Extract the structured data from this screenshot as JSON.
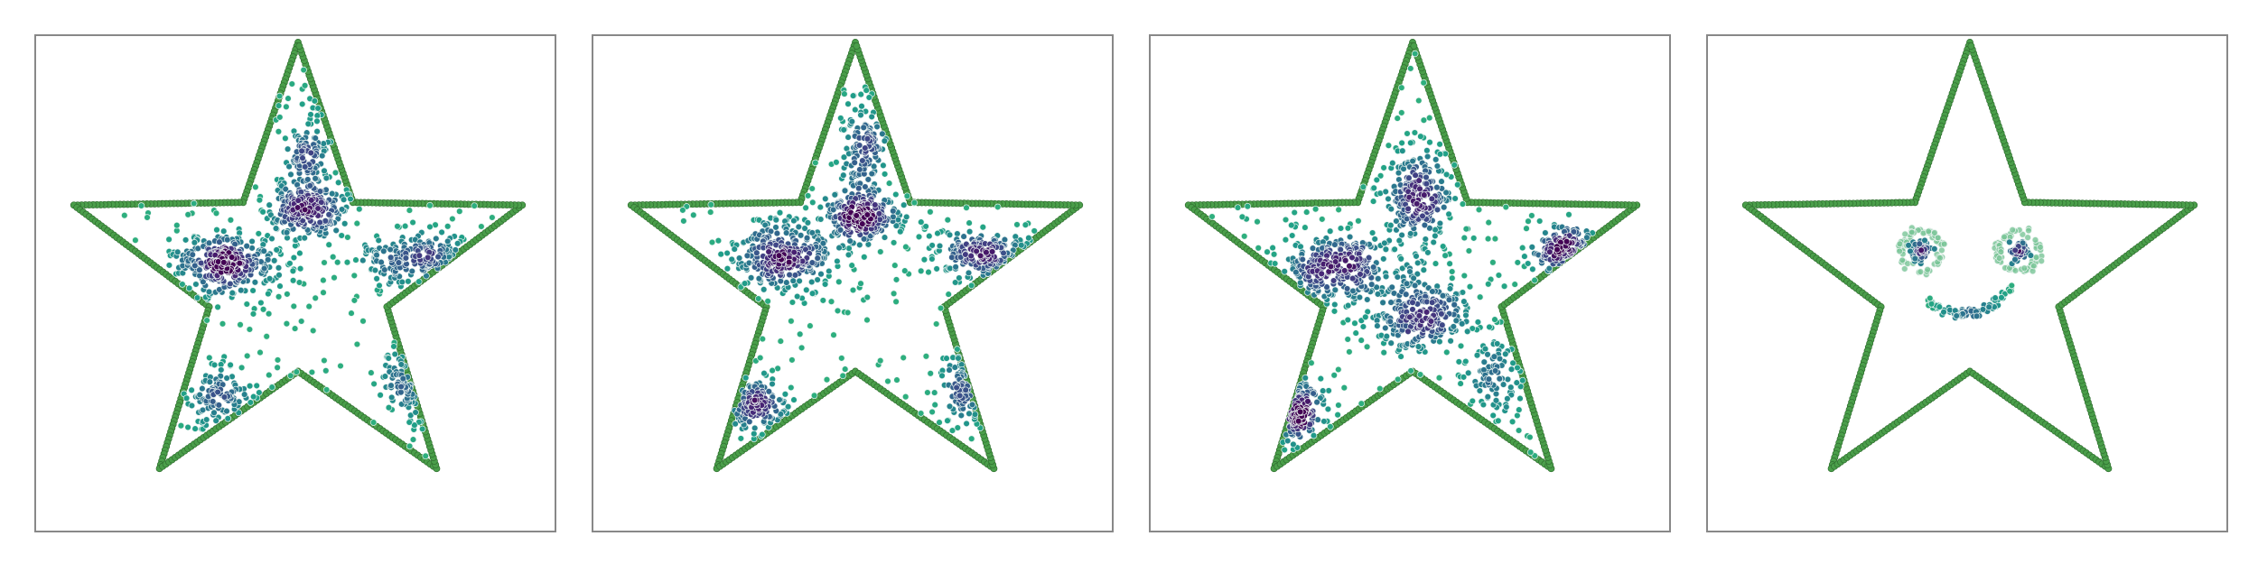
{
  "chart_data": [
    {
      "type": "scatter",
      "outline": {
        "color": "#4a9e4a",
        "edge_color": "#2f6e2f",
        "points_per_edge": 44
      },
      "clusters": [
        {
          "x": 0.03,
          "y": 0.25,
          "sx": 0.07,
          "sy": 0.05,
          "n": 200
        },
        {
          "x": 0.04,
          "y": 0.44,
          "sx": 0.035,
          "sy": 0.1,
          "n": 110
        },
        {
          "x": -0.27,
          "y": 0.06,
          "sx": 0.1,
          "sy": 0.06,
          "n": 300
        },
        {
          "x": 0.45,
          "y": 0.07,
          "sx": 0.12,
          "sy": 0.05,
          "n": 180
        },
        {
          "x": -0.3,
          "y": -0.43,
          "sx": 0.08,
          "sy": 0.05,
          "n": 100
        },
        {
          "x": 0.42,
          "y": -0.38,
          "sx": 0.05,
          "sy": 0.08,
          "n": 80
        }
      ],
      "background_n": 160,
      "seed": 11
    },
    {
      "type": "scatter",
      "outline": {
        "color": "#4a9e4a",
        "edge_color": "#2f6e2f",
        "points_per_edge": 44
      },
      "clusters": [
        {
          "x": 0.02,
          "y": 0.22,
          "sx": 0.07,
          "sy": 0.05,
          "n": 200
        },
        {
          "x": 0.03,
          "y": 0.47,
          "sx": 0.035,
          "sy": 0.1,
          "n": 130
        },
        {
          "x": -0.27,
          "y": 0.08,
          "sx": 0.1,
          "sy": 0.06,
          "n": 280
        },
        {
          "x": 0.48,
          "y": 0.08,
          "sx": 0.11,
          "sy": 0.045,
          "n": 170
        },
        {
          "x": -0.37,
          "y": -0.47,
          "sx": 0.07,
          "sy": 0.05,
          "n": 120
        },
        {
          "x": 0.42,
          "y": -0.38,
          "sx": 0.05,
          "sy": 0.08,
          "n": 80
        }
      ],
      "background_n": 160,
      "seed": 23
    },
    {
      "type": "scatter",
      "outline": {
        "color": "#4a9e4a",
        "edge_color": "#2f6e2f",
        "points_per_edge": 44
      },
      "clusters": [
        {
          "x": 0.03,
          "y": 0.3,
          "sx": 0.06,
          "sy": 0.1,
          "n": 230
        },
        {
          "x": -0.28,
          "y": 0.04,
          "sx": 0.1,
          "sy": 0.07,
          "n": 280
        },
        {
          "x": 0.57,
          "y": 0.1,
          "sx": 0.07,
          "sy": 0.04,
          "n": 120
        },
        {
          "x": 0.02,
          "y": -0.13,
          "sx": 0.1,
          "sy": 0.07,
          "n": 250
        },
        {
          "x": -0.47,
          "y": -0.47,
          "sx": 0.06,
          "sy": 0.06,
          "n": 120
        },
        {
          "x": 0.32,
          "y": -0.35,
          "sx": 0.05,
          "sy": 0.08,
          "n": 80
        }
      ],
      "background_n": 170,
      "seed": 37
    },
    {
      "type": "scatter",
      "outline": {
        "color": "#4a9e4a",
        "edge_color": "#2f6e2f",
        "points_per_edge": 44
      },
      "face": {
        "left_eye": {
          "x": -0.18,
          "y": 0.1,
          "r_ring": 0.075,
          "r_core": 0.04
        },
        "right_eye": {
          "x": 0.18,
          "y": 0.1,
          "r_ring": 0.075,
          "r_core": 0.04
        },
        "mouth": {
          "x": 0.0,
          "y": -0.06,
          "half_width": 0.16,
          "depth": 0.07
        },
        "n_ring": 70,
        "n_core": 90,
        "n_mouth": 110
      },
      "seed": 53
    }
  ]
}
